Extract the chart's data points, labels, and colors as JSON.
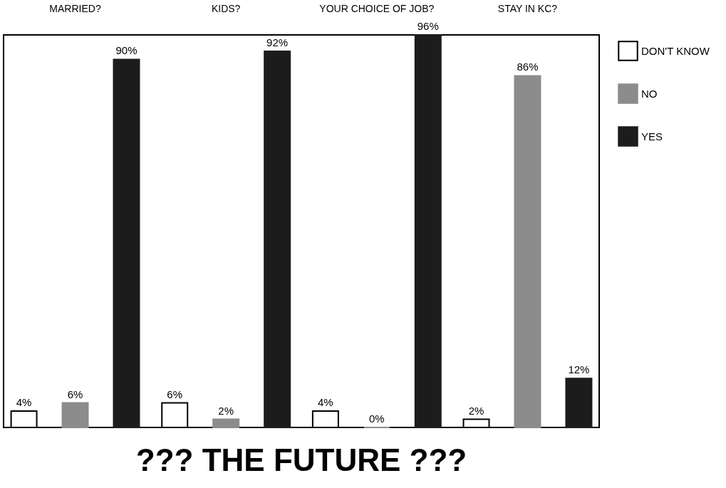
{
  "chart_data": {
    "type": "bar",
    "title": "??? THE FUTURE ???",
    "categories": [
      "MARRIED?",
      "KIDS?",
      "YOUR CHOICE OF JOB?",
      "STAY IN KC?"
    ],
    "series": [
      {
        "name": "DON'T KNOW",
        "color": "#ffffff",
        "values": [
          4,
          6,
          4,
          2
        ],
        "value_labels": [
          "4%",
          "6%",
          "4%",
          "2%"
        ]
      },
      {
        "name": "NO",
        "color": "#8c8c8c",
        "values": [
          6,
          2,
          0,
          86
        ],
        "value_labels": [
          "6%",
          "2%",
          "0%",
          "86%"
        ]
      },
      {
        "name": "YES",
        "color": "#1c1c1c",
        "values": [
          90,
          92,
          96,
          12
        ],
        "value_labels": [
          "90%",
          "92%",
          "96%",
          "12%"
        ]
      }
    ],
    "legend": "top right",
    "grid": false
  }
}
